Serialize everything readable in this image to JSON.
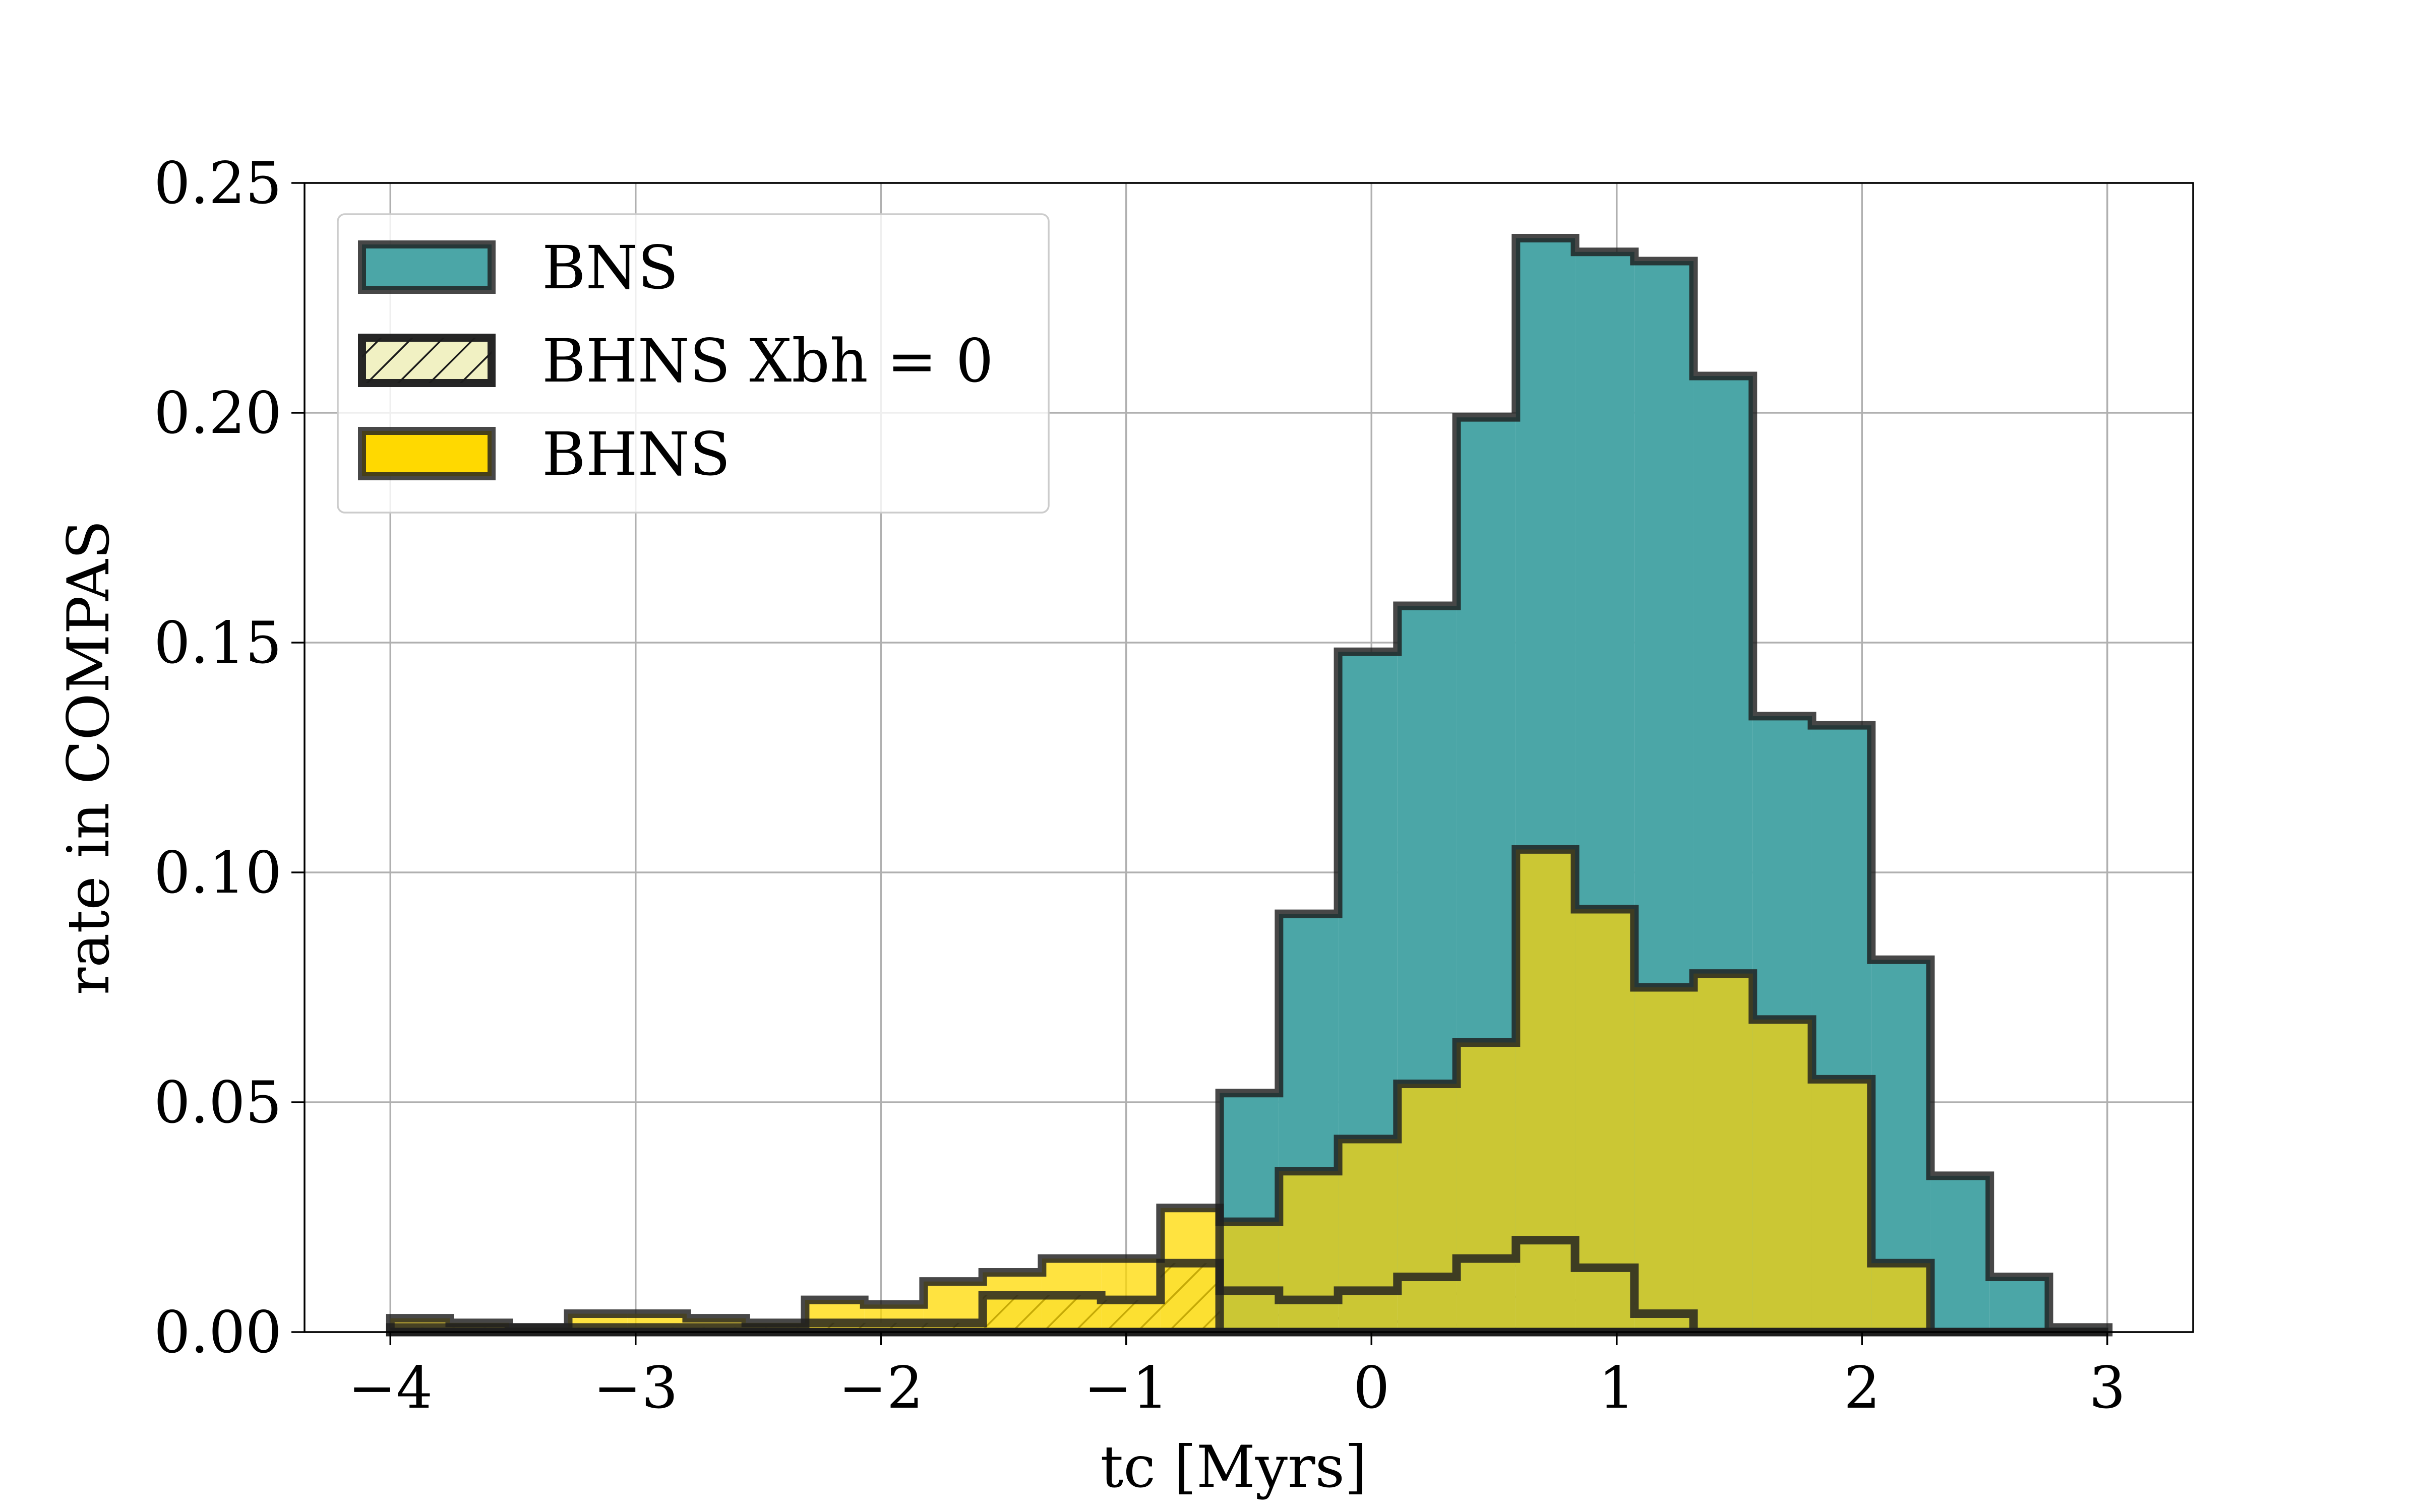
{
  "chart_data": {
    "type": "histogram",
    "xlabel": "tc [Myrs]",
    "ylabel": "rate in COMPAS",
    "xlim": [
      -4.35,
      3.35
    ],
    "ylim": [
      0,
      0.25
    ],
    "grid": true,
    "legend_position": "upper-left",
    "x_ticks": [
      -4,
      -3,
      -2,
      -1,
      0,
      1,
      2,
      3
    ],
    "x_tick_labels": [
      "−4",
      "−3",
      "−2",
      "−1",
      "0",
      "1",
      "2",
      "3"
    ],
    "y_ticks": [
      0,
      0.05,
      0.1,
      0.15,
      0.2,
      0.25
    ],
    "y_tick_labels": [
      "0.00",
      "0.05",
      "0.10",
      "0.15",
      "0.20",
      "0.25"
    ],
    "bin_edges": [
      -4.0,
      -3.758,
      -3.517,
      -3.275,
      -3.034,
      -2.792,
      -2.551,
      -2.309,
      -2.068,
      -1.826,
      -1.585,
      -1.343,
      -1.102,
      -0.86,
      -0.619,
      -0.377,
      -0.136,
      0.106,
      0.347,
      0.589,
      0.83,
      1.072,
      1.313,
      1.555,
      1.796,
      2.038,
      2.279,
      2.521,
      2.762,
      3.004
    ],
    "series": [
      {
        "name": "BNS",
        "fill": "#4ba6a7",
        "values": [
          0,
          0,
          0,
          0,
          0,
          0,
          0,
          0,
          0,
          0,
          0,
          0,
          0,
          0,
          0.052,
          0.091,
          0.148,
          0.158,
          0.199,
          0.238,
          0.235,
          0.233,
          0.208,
          0.134,
          0.132,
          0.081,
          0.034,
          0.012,
          0.001
        ]
      },
      {
        "name": "BHNS Xbh = 0",
        "fill": "#f1f1c3",
        "hatch": true,
        "values": [
          0.001,
          0.001,
          0.001,
          0.001,
          0.001,
          0.001,
          0.001,
          0.002,
          0.002,
          0.002,
          0.008,
          0.008,
          0.007,
          0.015,
          0.009,
          0.007,
          0.009,
          0.012,
          0.016,
          0.02,
          0.014,
          0.004,
          0,
          0,
          0,
          0,
          0,
          0,
          0
        ]
      },
      {
        "name": "BHNS",
        "fill": "#ffd900",
        "overlay_fill": "#cbc734",
        "values": [
          0.003,
          0.002,
          0.001,
          0.004,
          0.004,
          0.003,
          0.002,
          0.007,
          0.006,
          0.011,
          0.013,
          0.016,
          0.016,
          0.027,
          0.024,
          0.035,
          0.042,
          0.054,
          0.063,
          0.105,
          0.092,
          0.075,
          0.078,
          0.068,
          0.055,
          0.015,
          0,
          0,
          0
        ]
      }
    ],
    "legend": [
      {
        "label": "BNS",
        "swatch": "teal"
      },
      {
        "label": "BHNS Xbh = 0",
        "swatch": "hatch"
      },
      {
        "label": "BHNS",
        "swatch": "yellow"
      }
    ]
  }
}
